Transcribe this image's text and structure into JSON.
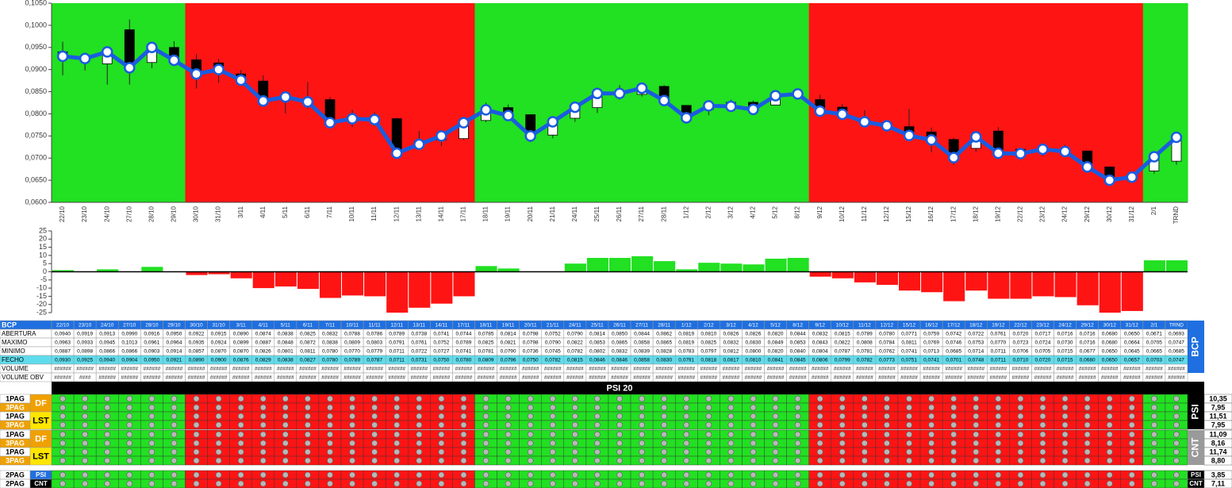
{
  "chart_data": [
    {
      "type": "candlestick",
      "categories": [
        "22/10",
        "23/10",
        "24/10",
        "27/10",
        "28/10",
        "29/10",
        "30/10",
        "31/10",
        "3/11",
        "4/11",
        "5/11",
        "6/11",
        "7/11",
        "10/11",
        "11/11",
        "12/11",
        "13/11",
        "14/11",
        "17/11",
        "18/11",
        "19/11",
        "20/11",
        "21/11",
        "24/11",
        "25/11",
        "26/11",
        "27/11",
        "28/11",
        "1/12",
        "2/12",
        "3/12",
        "4/12",
        "5/12",
        "8/12",
        "9/12",
        "10/12",
        "11/12",
        "12/12",
        "15/12",
        "16/12",
        "17/12",
        "18/12",
        "19/12",
        "22/12",
        "23/12",
        "24/12",
        "29/12",
        "30/12",
        "31/12",
        "2/1",
        "TRND"
      ],
      "series": [
        {
          "name": "ABERTURA",
          "values": [
            0.094,
            0.0919,
            0.0913,
            0.099,
            0.0916,
            0.095,
            0.0922,
            0.0915,
            0.089,
            0.0874,
            0.0838,
            0.0825,
            0.0832,
            0.0788,
            0.0786,
            0.0789,
            0.0738,
            0.0741,
            0.0744,
            0.0785,
            0.0814,
            0.0798,
            0.0752,
            0.079,
            0.0814,
            0.085,
            0.0844,
            0.0862,
            0.0819,
            0.081,
            0.0826,
            0.0826,
            0.082,
            0.0844,
            0.0832,
            0.0815,
            0.0789,
            0.078,
            0.0771,
            0.0759,
            0.0742,
            0.0722,
            0.0761,
            0.072,
            0.0717,
            0.0716,
            0.0716,
            0.068,
            0.065,
            0.0671,
            0.0693
          ],
          "value_labels": [
            "0,0940",
            "0,0919",
            "0,0913",
            "0,0990",
            "0,0916",
            "0,0950",
            "0,0922",
            "0,0915",
            "0,0890",
            "0,0874",
            "0,0838",
            "0,0825",
            "0,0832",
            "0,0788",
            "0,0786",
            "0,0789",
            "0,0738",
            "0,0741",
            "0,0744",
            "0,0785",
            "0,0814",
            "0,0798",
            "0,0752",
            "0,0790",
            "0,0814",
            "0,0850",
            "0,0844",
            "0,0862",
            "0,0819",
            "0,0810",
            "0,0826",
            "0,0826",
            "0,0820",
            "0,0844",
            "0,0832",
            "0,0815",
            "0,0789",
            "0,0780",
            "0,0771",
            "0,0759",
            "0,0742",
            "0,0722",
            "0,0761",
            "0,0720",
            "0,0717",
            "0,0716",
            "0,0716",
            "0,0680",
            "0,0650",
            "0,0671",
            "0,0693"
          ]
        },
        {
          "name": "MAXIMO",
          "values": [
            0.0963,
            0.0933,
            0.0945,
            0.1013,
            0.0961,
            0.0964,
            0.0935,
            0.0924,
            0.0899,
            0.0887,
            0.0848,
            0.0872,
            0.0838,
            0.0809,
            0.0803,
            0.0791,
            0.0761,
            0.0752,
            0.0789,
            0.0825,
            0.0821,
            0.0798,
            0.079,
            0.0822,
            0.0853,
            0.0865,
            0.0858,
            0.0865,
            0.0819,
            0.0825,
            0.0832,
            0.083,
            0.0849,
            0.0853,
            0.0843,
            0.0822,
            0.0808,
            0.0784,
            0.0811,
            0.0769,
            0.0746,
            0.0753,
            0.077,
            0.0723,
            0.0724,
            0.073,
            0.0716,
            0.068,
            0.0664,
            0.0705,
            0.0747
          ],
          "value_labels": [
            "0,0963",
            "0,0933",
            "0,0945",
            "0,1013",
            "0,0961",
            "0,0964",
            "0,0935",
            "0,0924",
            "0,0899",
            "0,0887",
            "0,0848",
            "0,0872",
            "0,0838",
            "0,0809",
            "0,0803",
            "0,0791",
            "0,0761",
            "0,0752",
            "0,0789",
            "0,0825",
            "0,0821",
            "0,0798",
            "0,0790",
            "0,0822",
            "0,0853",
            "0,0865",
            "0,0858",
            "0,0865",
            "0,0819",
            "0,0825",
            "0,0832",
            "0,0830",
            "0,0849",
            "0,0853",
            "0,0843",
            "0,0822",
            "0,0808",
            "0,0784",
            "0,0811",
            "0,0769",
            "0,0746",
            "0,0753",
            "0,0770",
            "0,0723",
            "0,0724",
            "0,0730",
            "0,0716",
            "0,0680",
            "0,0664",
            "0,0705",
            "0,0747"
          ]
        },
        {
          "name": "MINIMO",
          "values": [
            0.0887,
            0.0898,
            0.0866,
            0.0866,
            0.0903,
            0.0914,
            0.0857,
            0.087,
            0.087,
            0.0826,
            0.0801,
            0.0811,
            0.078,
            0.077,
            0.0779,
            0.0711,
            0.0722,
            0.0727,
            0.0741,
            0.0781,
            0.079,
            0.0736,
            0.0745,
            0.0782,
            0.0802,
            0.0832,
            0.0839,
            0.0828,
            0.0783,
            0.0797,
            0.0812,
            0.08,
            0.082,
            0.084,
            0.0804,
            0.0787,
            0.0781,
            0.0762,
            0.0741,
            0.0713,
            0.0685,
            0.0714,
            0.0711,
            0.0706,
            0.0705,
            0.0715,
            0.0677,
            0.065,
            0.0645,
            0.0665,
            0.0685
          ],
          "value_labels": [
            "0,0887",
            "0,0898",
            "0,0866",
            "0,0866",
            "0,0903",
            "0,0914",
            "0,0857",
            "0,0870",
            "0,0870",
            "0,0826",
            "0,0801",
            "0,0811",
            "0,0780",
            "0,0770",
            "0,0779",
            "0,0711",
            "0,0722",
            "0,0727",
            "0,0741",
            "0,0781",
            "0,0790",
            "0,0736",
            "0,0745",
            "0,0782",
            "0,0802",
            "0,0832",
            "0,0839",
            "0,0828",
            "0,0783",
            "0,0797",
            "0,0812",
            "0,0800",
            "0,0820",
            "0,0840",
            "0,0804",
            "0,0787",
            "0,0781",
            "0,0762",
            "0,0741",
            "0,0713",
            "0,0685",
            "0,0714",
            "0,0711",
            "0,0706",
            "0,0705",
            "0,0715",
            "0,0677",
            "0,0650",
            "0,0645",
            "0,0665",
            "0,0685"
          ]
        },
        {
          "name": "FECHO",
          "values": [
            0.093,
            0.0925,
            0.094,
            0.0904,
            0.095,
            0.0921,
            0.089,
            0.09,
            0.0876,
            0.0829,
            0.0838,
            0.0827,
            0.078,
            0.0789,
            0.0787,
            0.0711,
            0.0731,
            0.075,
            0.078,
            0.0809,
            0.0796,
            0.075,
            0.0782,
            0.0815,
            0.0846,
            0.0846,
            0.0858,
            0.083,
            0.0791,
            0.0818,
            0.0817,
            0.081,
            0.0841,
            0.0845,
            0.0806,
            0.0799,
            0.0782,
            0.0773,
            0.0751,
            0.0741,
            0.0701,
            0.0748,
            0.0711,
            0.071,
            0.072,
            0.0715,
            0.068,
            0.065,
            0.0657,
            0.0703,
            0.0747
          ],
          "value_labels": [
            "0,0930",
            "0,0925",
            "0,0940",
            "0,0904",
            "0,0950",
            "0,0921",
            "0,0890",
            "0,0900",
            "0,0876",
            "0,0829",
            "0,0838",
            "0,0827",
            "0,0780",
            "0,0789",
            "0,0787",
            "0,0711",
            "0,0731",
            "0,0750",
            "0,0780",
            "0,0809",
            "0,0796",
            "0,0750",
            "0,0782",
            "0,0815",
            "0,0846",
            "0,0846",
            "0,0858",
            "0,0830",
            "0,0791",
            "0,0818",
            "0,0817",
            "0,0810",
            "0,0841",
            "0,0845",
            "0,0806",
            "0,0799",
            "0,0782",
            "0,0773",
            "0,0751",
            "0,0741",
            "0,0701",
            "0,0748",
            "0,0711",
            "0,0710",
            "0,0720",
            "0,0715",
            "0,0680",
            "0,0650",
            "0,0657",
            "0,0703",
            "0,0747"
          ]
        }
      ],
      "line_color": "#1a5ce0",
      "ylim": [
        0.06,
        0.105
      ],
      "yticks": [
        {
          "value": 0.06,
          "label": "0,0600"
        },
        {
          "value": 0.065,
          "label": "0,0650"
        },
        {
          "value": 0.07,
          "label": "0,0700"
        },
        {
          "value": 0.075,
          "label": "0,0750"
        },
        {
          "value": 0.08,
          "label": "0,0800"
        },
        {
          "value": 0.085,
          "label": "0,0850"
        },
        {
          "value": 0.09,
          "label": "0,0900"
        },
        {
          "value": 0.095,
          "label": "0,0950"
        },
        {
          "value": 0.1,
          "label": "0,1000"
        },
        {
          "value": 0.105,
          "label": "0,1050"
        }
      ]
    },
    {
      "type": "bar",
      "values": [
        1,
        0,
        1.5,
        0,
        3,
        0,
        -2,
        -1.5,
        -4,
        -10,
        -9,
        -10.5,
        -16,
        -14.5,
        -15,
        -25,
        -22,
        -19.5,
        -15,
        3.5,
        2,
        0,
        0,
        5,
        8.5,
        8.5,
        9.5,
        6.5,
        1.5,
        5.5,
        5,
        4.5,
        8,
        8.5,
        -3,
        -4,
        -6.5,
        -8,
        -11.5,
        -12.5,
        -18,
        -11.5,
        -16.5,
        -16.5,
        -15,
        -15.5,
        -20.5,
        -25,
        -24,
        7,
        7
      ],
      "up_color": "#22e022",
      "down_color": "#ff1414",
      "ylim": [
        -25,
        25
      ],
      "yticks": [
        -25,
        -20,
        -15,
        -10,
        -5,
        0,
        5,
        10,
        15,
        20,
        25
      ]
    }
  ],
  "table": {
    "title": "BCP",
    "side_label": "BCP",
    "rows": [
      {
        "label": "VOLUME",
        "cells": [
          "######",
          "######",
          "######",
          "######",
          "######",
          "######",
          "######",
          "######",
          "######",
          "######",
          "######",
          "######",
          "######",
          "######",
          "######",
          "######",
          "######",
          "######",
          "######",
          "######",
          "######",
          "######",
          "######",
          "######",
          "######",
          "######",
          "######",
          "######",
          "######",
          "######",
          "######",
          "######",
          "######",
          "######",
          "######",
          "######",
          "######",
          "######",
          "######",
          "######",
          "######",
          "######",
          "######",
          "######",
          "######",
          "######",
          "######",
          "######",
          "######",
          "######",
          "######"
        ]
      },
      {
        "label": "VOLUME OBV",
        "cells": [
          "######",
          "####",
          "######",
          "######",
          "######",
          "######",
          "######",
          "######",
          "######",
          "######",
          "######",
          "######",
          "######",
          "######",
          "######",
          "######",
          "######",
          "######",
          "######",
          "######",
          "######",
          "######",
          "######",
          "######",
          "######",
          "######",
          "######",
          "######",
          "######",
          "######",
          "######",
          "######",
          "######",
          "######",
          "######",
          "######",
          "######",
          "######",
          "######",
          "######",
          "######",
          "######",
          "######",
          "######",
          "######",
          "######",
          "######",
          "######",
          "######",
          "######",
          "######"
        ]
      }
    ]
  },
  "signals": {
    "title": "PSI 20",
    "groups": [
      {
        "side_label": "PSI",
        "tags": [
          "DF",
          "LST"
        ],
        "rows": [
          {
            "label": "1PAG",
            "value": "10,35"
          },
          {
            "label": "3PAG",
            "value": "7,95"
          },
          {
            "label": "1PAG",
            "value": "11,51"
          },
          {
            "label": "3PAG",
            "value": "7,95"
          }
        ]
      },
      {
        "side_label": "CNT",
        "tags": [
          "DF",
          "LST"
        ],
        "rows": [
          {
            "label": "1PAG",
            "value": "11,09"
          },
          {
            "label": "3PAG",
            "value": "8,16"
          },
          {
            "label": "1PAG",
            "value": "11,74"
          },
          {
            "label": "3PAG",
            "value": "8,80"
          }
        ]
      }
    ],
    "bottom": [
      {
        "label": "2PAG",
        "tag": "PSI",
        "side": "PSI",
        "value": "3,85"
      },
      {
        "label": "2PAG",
        "tag": "CNT",
        "side": "CNT",
        "value": "7,11"
      }
    ]
  }
}
